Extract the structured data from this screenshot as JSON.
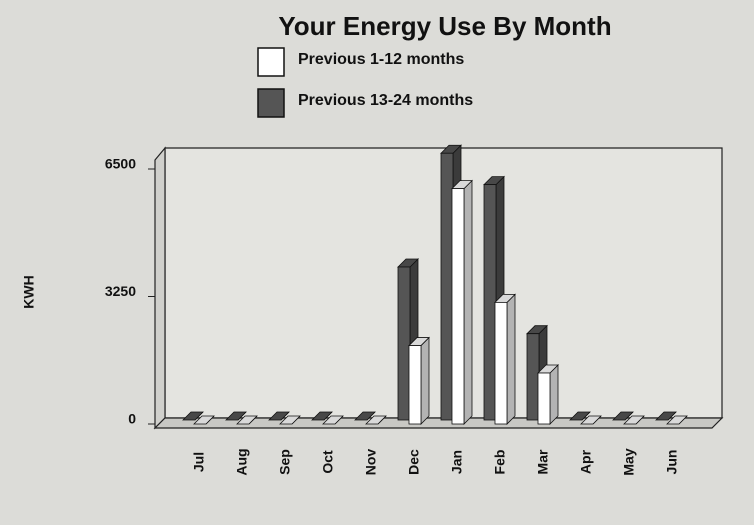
{
  "chart_data": {
    "type": "bar",
    "title": "Your Energy Use By Month",
    "y_label": "KWH",
    "categories": [
      "Jul",
      "Aug",
      "Sep",
      "Oct",
      "Nov",
      "Dec",
      "Jan",
      "Feb",
      "Mar",
      "Apr",
      "May",
      "Jun"
    ],
    "series": [
      {
        "name": "Previous 1-12 months",
        "color": "#ffffff",
        "values": [
          0,
          0,
          0,
          0,
          0,
          2000,
          6000,
          3100,
          1300,
          0,
          0,
          0
        ]
      },
      {
        "name": "Previous 13-24 months",
        "color": "#555555",
        "values": [
          0,
          0,
          0,
          0,
          0,
          3900,
          6800,
          6000,
          2200,
          0,
          0,
          0
        ]
      }
    ],
    "ylim": [
      0,
      6500
    ],
    "yticks": [
      0,
      3250,
      6500
    ],
    "grid": false
  }
}
